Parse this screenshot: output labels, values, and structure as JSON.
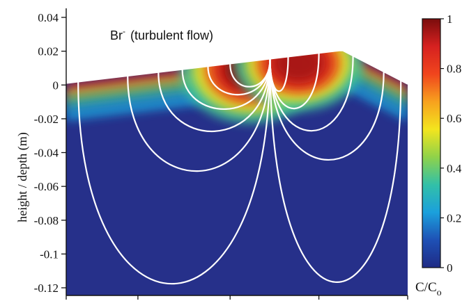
{
  "chart_data": {
    "type": "heatmap",
    "title": "",
    "annotation": {
      "species": "Br",
      "charge": "-",
      "condition": "(turbulent flow)"
    },
    "xlabel": "",
    "ylabel": "height / depth (m)",
    "ylim": [
      -0.125,
      0.045
    ],
    "yticks": [
      {
        "value": 0.04,
        "label": "0.04"
      },
      {
        "value": 0.02,
        "label": "0.02"
      },
      {
        "value": 0,
        "label": "0"
      },
      {
        "value": -0.02,
        "label": "-0.02"
      },
      {
        "value": -0.04,
        "label": "-0.04"
      },
      {
        "value": -0.06,
        "label": "-0.06"
      },
      {
        "value": -0.08,
        "label": "-0.08"
      },
      {
        "value": -0.1,
        "label": "-0.1"
      },
      {
        "value": -0.12,
        "label": "-0.12"
      }
    ],
    "x_extent": [
      0,
      1
    ],
    "x_tick_positions": [
      0,
      0.21,
      0.48,
      0.74,
      1
    ],
    "surface_profile": [
      {
        "x": 0,
        "y": 0.001
      },
      {
        "x": 0.6,
        "y": 0.0155
      },
      {
        "x": 0.8,
        "y": 0.0203
      },
      {
        "x": 0.81,
        "y": 0.0203
      },
      {
        "x": 1,
        "y": 0.0005
      }
    ],
    "high_concentration_zones": [
      {
        "x": 0.54,
        "y": 0.0095,
        "rx": 0.11,
        "ry": 0.017,
        "value": 1.0
      },
      {
        "x": 0.68,
        "y": 0.013,
        "rx": 0.1,
        "ry": 0.015,
        "value": 0.95
      }
    ],
    "streamlines_from_x": 0.597,
    "streamline_targets": [
      {
        "x": 0.035,
        "depth": -0.126
      },
      {
        "x": 0.18,
        "depth": -0.055
      },
      {
        "x": 0.27,
        "depth": -0.03
      },
      {
        "x": 0.34,
        "depth": -0.016
      },
      {
        "x": 0.415,
        "depth": -0.007
      },
      {
        "x": 0.48,
        "depth": -0.002
      },
      {
        "x": 0.65,
        "depth": -0.005
      },
      {
        "x": 0.74,
        "depth": -0.016
      },
      {
        "x": 0.84,
        "depth": -0.03
      },
      {
        "x": 0.93,
        "depth": -0.048
      },
      {
        "x": 0.98,
        "depth": -0.125
      }
    ],
    "colorbar": {
      "title": "C/C",
      "title_subscript": "o",
      "min": 0,
      "max": 1,
      "ticks": [
        {
          "value": 0,
          "label": "0"
        },
        {
          "value": 0.2,
          "label": "0.2"
        },
        {
          "value": 0.4,
          "label": "0.4"
        },
        {
          "value": 0.6,
          "label": "0.6"
        },
        {
          "value": 0.8,
          "label": "0.8"
        },
        {
          "value": 1,
          "label": "1"
        }
      ],
      "colormap": [
        "#1f2b85",
        "#1e50b5",
        "#1ba0dc",
        "#32c0a8",
        "#8fd24a",
        "#f3e51e",
        "#f7a11e",
        "#f0451d",
        "#d62120",
        "#7a0c0c"
      ]
    },
    "colors": {
      "background_fluid": "#26308a",
      "streamline": "#ffffff",
      "axis": "#111111"
    }
  }
}
